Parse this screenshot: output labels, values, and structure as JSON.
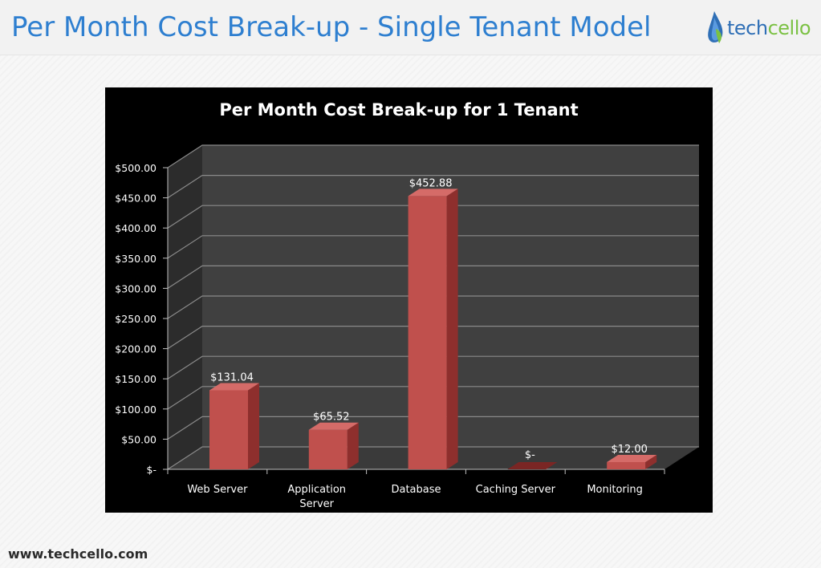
{
  "page": {
    "title": "Per Month Cost Break-up - Single Tenant Model",
    "footer_url": "www.techcello.com"
  },
  "logo": {
    "text_part1": "tech",
    "text_part2": "cello",
    "icon": "water-drop-leaf-icon",
    "colors": {
      "tech": "#2f6fb6",
      "cello": "#7bc143"
    }
  },
  "colors": {
    "title": "#2e7fd0",
    "bar": "#c0504d",
    "chart_background": "#000000",
    "plot_wall": "#404040"
  },
  "chart_data": {
    "type": "bar",
    "title": "Per Month Cost Break-up for 1 Tenant",
    "categories": [
      "Web Server",
      "Application Server",
      "Database",
      "Caching Server",
      "Monitoring"
    ],
    "values": [
      131.04,
      65.52,
      452.88,
      0,
      12.0
    ],
    "data_labels": [
      "$131.04",
      "$65.52",
      "$452.88",
      "$-",
      "$12.00"
    ],
    "ylim": [
      0,
      500
    ],
    "y_ticks": [
      0,
      50,
      100,
      150,
      200,
      250,
      300,
      350,
      400,
      450,
      500
    ],
    "y_tick_labels": [
      "$-",
      "$50.00",
      "$100.00",
      "$150.00",
      "$200.00",
      "$250.00",
      "$300.00",
      "$350.00",
      "$400.00",
      "$450.00",
      "$500.00"
    ],
    "style": "3d-column",
    "grid": true,
    "legend": "none"
  }
}
